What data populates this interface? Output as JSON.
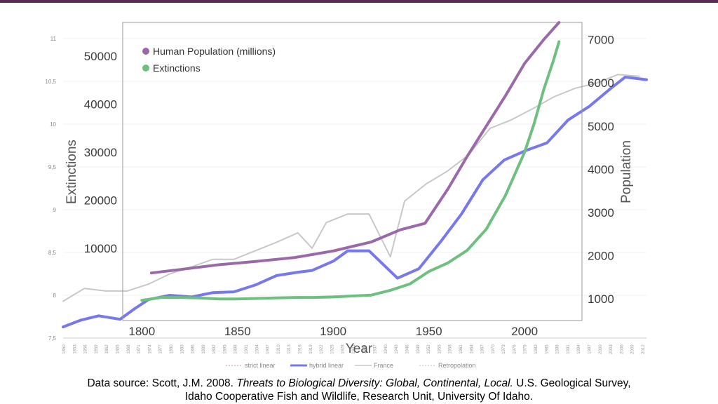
{
  "chart_data": [
    {
      "type": "line",
      "title": "",
      "xlabel": "Year",
      "ylabel": "Extinctions",
      "y2label": "Population",
      "xlim": [
        1790,
        2030
      ],
      "x_ticks": [
        "1800",
        "1850",
        "1900",
        "1950",
        "2000"
      ],
      "ylim": [
        -5000,
        57000
      ],
      "y_ticks": [
        "10000",
        "20000",
        "30000",
        "40000",
        "50000"
      ],
      "y2lim": [
        500,
        7400
      ],
      "y2_ticks": [
        "1000",
        "2000",
        "3000",
        "4000",
        "5000",
        "6000",
        "7000"
      ],
      "legend_position": "top-left",
      "series": [
        {
          "name": "Human Population (millions)",
          "axis": "right",
          "color": "#9a6aa8",
          "x": [
            1805,
            1820,
            1840,
            1860,
            1880,
            1900,
            1920,
            1935,
            1948,
            1960,
            1970,
            1980,
            1990,
            2000,
            2010,
            2018
          ],
          "y": [
            1600,
            1680,
            1790,
            1870,
            1960,
            2110,
            2320,
            2600,
            2750,
            3550,
            4300,
            5000,
            5700,
            6450,
            7000,
            7400
          ]
        },
        {
          "name": "Extinctions",
          "axis": "left",
          "color": "#6fbf80",
          "x": [
            1800,
            1810,
            1820,
            1830,
            1840,
            1850,
            1860,
            1870,
            1880,
            1890,
            1900,
            1910,
            1920,
            1930,
            1940,
            1950,
            1960,
            1970,
            1980,
            1990,
            2000,
            2005,
            2010,
            2015,
            2018
          ],
          "y": [
            -800,
            -200,
            -200,
            -300,
            -500,
            -500,
            -400,
            -300,
            -200,
            -200,
            -100,
            100,
            300,
            1300,
            2600,
            5200,
            7000,
            9600,
            14000,
            21000,
            30000,
            36000,
            43000,
            49000,
            53000
          ]
        }
      ]
    },
    {
      "type": "line",
      "title": "",
      "ylim": [
        7.5,
        11
      ],
      "y_ticks": [
        "7,5",
        "8",
        "8,5",
        "9",
        "9,5",
        "10",
        "10,5",
        "11"
      ],
      "x_ticks": [
        "1850",
        "1853",
        "1856",
        "1859",
        "1862",
        "1865",
        "1868",
        "1871",
        "1874",
        "1877",
        "1880",
        "1883",
        "1886",
        "1889",
        "1892",
        "1895",
        "1898",
        "1901",
        "1904",
        "1907",
        "1910",
        "1913",
        "1916",
        "1919",
        "1922",
        "1925",
        "1928",
        "1931",
        "1934",
        "1937",
        "1940",
        "1943",
        "1946",
        "1949",
        "1952",
        "1955",
        "1958",
        "1961",
        "1964",
        "1967",
        "1970",
        "1973",
        "1976",
        "1979",
        "1982",
        "1985",
        "1988",
        "1991",
        "1994",
        "1997",
        "2000",
        "2003",
        "2006",
        "2009",
        "2012"
      ],
      "legend_position": "bottom",
      "series": [
        {
          "name": "strict linear",
          "color": "#e0b0b0",
          "style": "dotted",
          "x": [],
          "y": []
        },
        {
          "name": "hybrid linear",
          "color": "#7777ee",
          "style": "solid",
          "x": [
            1850,
            1855,
            1860,
            1866,
            1870,
            1874,
            1880,
            1886,
            1892,
            1898,
            1904,
            1910,
            1916,
            1920,
            1926,
            1930,
            1936,
            1944,
            1950,
            1956,
            1962,
            1968,
            1974,
            1980,
            1986,
            1992,
            1998,
            2004,
            2008,
            2014
          ],
          "y": [
            7.63,
            7.71,
            7.76,
            7.72,
            7.84,
            7.95,
            8.0,
            7.98,
            8.03,
            8.04,
            8.12,
            8.23,
            8.27,
            8.29,
            8.4,
            8.52,
            8.52,
            8.2,
            8.31,
            8.62,
            8.95,
            9.35,
            9.58,
            9.69,
            9.78,
            10.05,
            10.21,
            10.42,
            10.55,
            10.52
          ]
        },
        {
          "name": "France",
          "color": "#c8c8c8",
          "style": "solid",
          "x": [
            1850,
            1856,
            1862,
            1868,
            1874,
            1880,
            1886,
            1892,
            1898,
            1904,
            1910,
            1916,
            1920,
            1924,
            1930,
            1936,
            1942,
            1946,
            1952,
            1958,
            1964,
            1970,
            1976,
            1982,
            1988,
            1994,
            2000,
            2006,
            2012
          ],
          "y": [
            7.93,
            8.08,
            8.05,
            8.05,
            8.13,
            8.25,
            8.33,
            8.42,
            8.42,
            8.52,
            8.62,
            8.73,
            8.55,
            8.85,
            8.95,
            8.95,
            8.45,
            9.1,
            9.3,
            9.45,
            9.64,
            9.95,
            10.05,
            10.18,
            10.32,
            10.42,
            10.48,
            10.58,
            10.56
          ]
        },
        {
          "name": "Retropolation",
          "color": "#d4d4d4",
          "style": "dotted",
          "x": [],
          "y": []
        }
      ]
    }
  ],
  "source": {
    "line1_prefix": "Data source: Scott, J.M. 2008. ",
    "line1_title": "Threats to Biological Diversity: Global, Continental, Local.",
    "line1_suffix": " U.S. Geological Survey,",
    "line2": "Idaho Cooperative Fish and Wildlife, Research Unit, University Of Idaho."
  },
  "colors": {
    "top_bar": "#5b2a55",
    "population": "#9a6aa8",
    "extinctions": "#6fbf80",
    "hybrid_linear": "#7777ee",
    "france": "#c8c8c8"
  }
}
